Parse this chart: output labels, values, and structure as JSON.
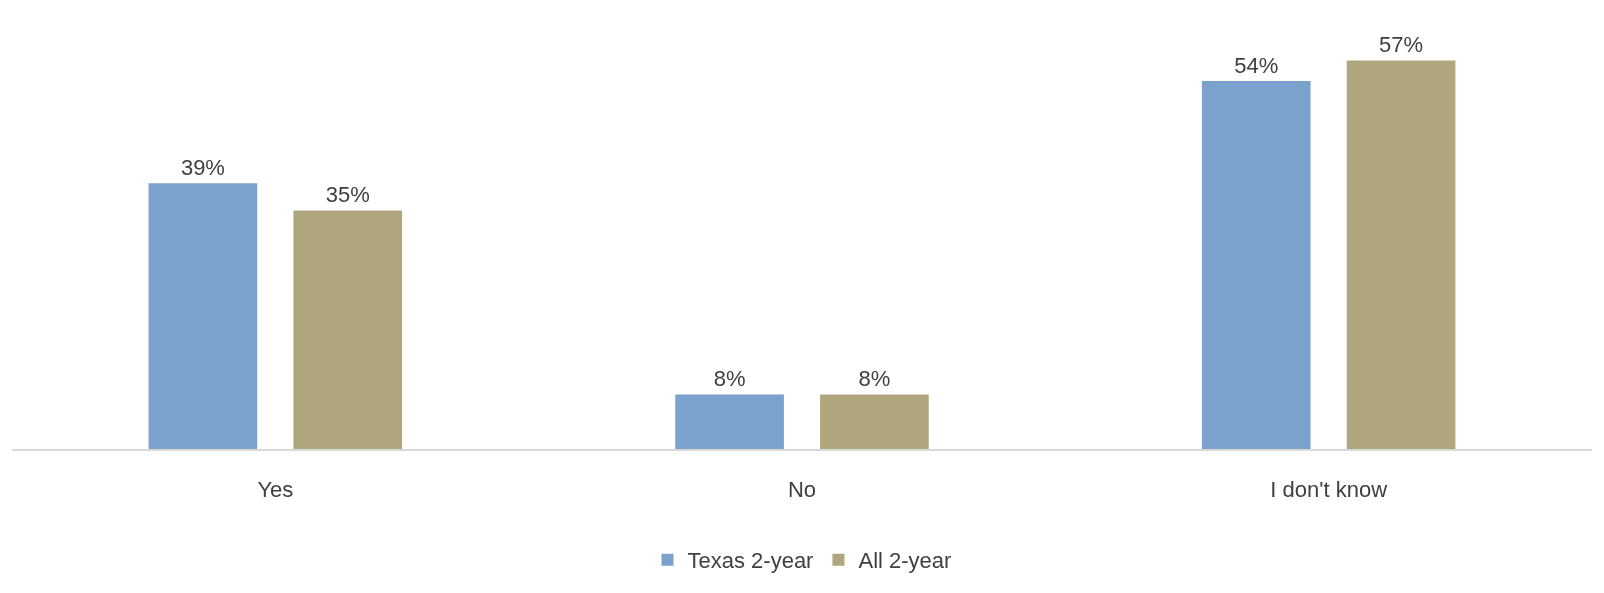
{
  "chart_data": {
    "type": "bar",
    "categories": [
      "Yes",
      "No",
      "I don't know"
    ],
    "series": [
      {
        "name": "Texas 2-year",
        "color": "#7ba2cc",
        "values": [
          39,
          8,
          54
        ],
        "value_labels": [
          "39%",
          "8%",
          "54%"
        ]
      },
      {
        "name": "All 2-year",
        "color": "#b0a67e",
        "values": [
          35,
          8,
          57
        ],
        "value_labels": [
          "35%",
          "8%",
          "57%"
        ]
      }
    ],
    "legend": "bottom"
  }
}
